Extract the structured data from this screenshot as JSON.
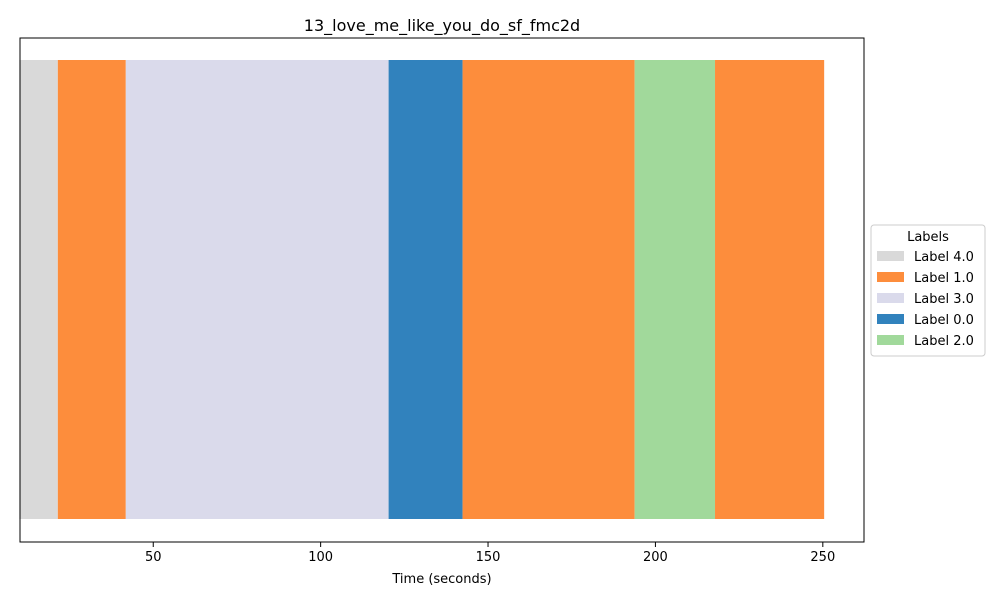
{
  "chart_data": {
    "type": "bar",
    "orientation": "horizontal-segments",
    "title": "13_love_me_like_you_do_sf_fmc2d",
    "xlabel": "Time (seconds)",
    "ylabel": "",
    "xlim": [
      10.2,
      262.3
    ],
    "xticks": [
      50,
      100,
      150,
      200,
      250
    ],
    "xtick_labels": [
      "50",
      "100",
      "150",
      200,
      250
    ],
    "grid": false,
    "legend": {
      "title": "Labels",
      "placement": "center-right outside",
      "entries": [
        {
          "label": "Label 4.0",
          "color": "#d9d9d9"
        },
        {
          "label": "Label 1.0",
          "color": "#fd8d3c"
        },
        {
          "label": "Label 3.0",
          "color": "#dadaeb"
        },
        {
          "label": "Label 0.0",
          "color": "#3182bd"
        },
        {
          "label": "Label 2.0",
          "color": "#a1d99b"
        }
      ]
    },
    "segments": [
      {
        "label": "Label 4.0",
        "start": 10.0,
        "end": 21.5
      },
      {
        "label": "Label 1.0",
        "start": 21.5,
        "end": 41.8
      },
      {
        "label": "Label 3.0",
        "start": 41.8,
        "end": 120.3
      },
      {
        "label": "Label 0.0",
        "start": 120.3,
        "end": 142.4
      },
      {
        "label": "Label 1.0",
        "start": 142.4,
        "end": 193.8
      },
      {
        "label": "Label 2.0",
        "start": 193.8,
        "end": 217.8
      },
      {
        "label": "Label 1.0",
        "start": 217.8,
        "end": 250.4
      }
    ]
  }
}
